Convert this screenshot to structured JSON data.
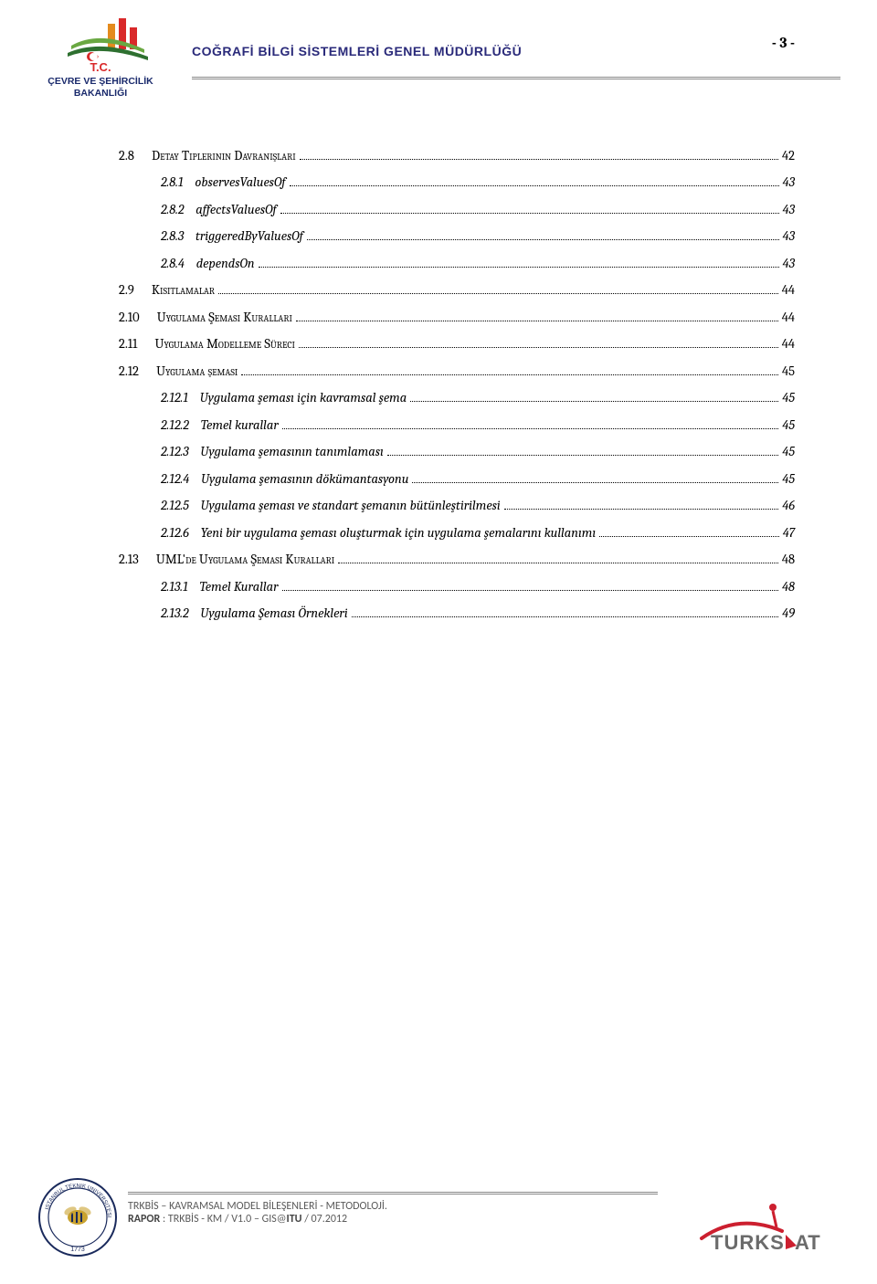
{
  "header": {
    "title": "COĞRAFİ BİLGİ SİSTEMLERİ GENEL MÜDÜRLÜĞÜ",
    "page_number": "- 3 -"
  },
  "toc": [
    {
      "level": 1,
      "num": "2.8",
      "title": "Detay Tiplerinin Davranışları",
      "page": "42"
    },
    {
      "level": 2,
      "num": "2.8.1",
      "title": "observesValuesOf",
      "page": "43"
    },
    {
      "level": 2,
      "num": "2.8.2",
      "title": "affectsValuesOf",
      "page": "43"
    },
    {
      "level": 2,
      "num": "2.8.3",
      "title": "triggeredByValuesOf",
      "page": "43"
    },
    {
      "level": 2,
      "num": "2.8.4",
      "title": "dependsOn",
      "page": "43"
    },
    {
      "level": 1,
      "num": "2.9",
      "title": "Kısıtlamalar",
      "page": "44"
    },
    {
      "level": 1,
      "num": "2.10",
      "title": "Uygulama Şeması Kuralları",
      "page": "44"
    },
    {
      "level": 1,
      "num": "2.11",
      "title": "Uygulama Modelleme Süreci",
      "page": "44"
    },
    {
      "level": 1,
      "num": "2.12",
      "title": "Uygulama şeması",
      "page": "45"
    },
    {
      "level": 2,
      "num": "2.12.1",
      "title": "Uygulama şeması için kavramsal şema",
      "page": "45"
    },
    {
      "level": 2,
      "num": "2.12.2",
      "title": "Temel kurallar",
      "page": "45"
    },
    {
      "level": 2,
      "num": "2.12.3",
      "title": "Uygulama şemasının tanımlaması",
      "page": "45"
    },
    {
      "level": 2,
      "num": "2.12.4",
      "title": "Uygulama şemasının dökümantasyonu",
      "page": "45"
    },
    {
      "level": 2,
      "num": "2.12.5",
      "title": "Uygulama şeması ve standart şemanın bütünleştirilmesi",
      "page": "46"
    },
    {
      "level": 2,
      "num": "2.12.6",
      "title": "Yeni bir uygulama şeması oluşturmak için uygulama şemalarını kullanımı",
      "page": "47"
    },
    {
      "level": 1,
      "num": "2.13",
      "title": "UML'de Uygulama Şeması Kuralları",
      "page": "48"
    },
    {
      "level": 2,
      "num": "2.13.1",
      "title": "Temel Kurallar",
      "page": "48"
    },
    {
      "level": 2,
      "num": "2.13.2",
      "title": "Uygulama Şeması Örnekleri",
      "page": "49"
    }
  ],
  "footer": {
    "line1": "TRKBİS – KAVRAMSAL MODEL BİLEŞENLERİ - METODOLOJİ.",
    "line2_label": "RAPOR",
    "line2_rest": " : TRKBİS - KM / V1.0 – GIS@",
    "line2_bold2": "ITU",
    "line2_rest2": " / 07.2012"
  },
  "colors": {
    "header_title": "#2a2a7a",
    "rule": "#888888",
    "text": "#000000",
    "footer_text": "#5a5a5a",
    "logo_red": "#d9292a",
    "logo_orange": "#e48b1e",
    "logo_green": "#6aa842",
    "logo_darkgreen": "#2e7030",
    "logo_navy": "#1a2a6c",
    "turksat_red": "#cc1f2f",
    "turksat_grey": "#6b6b6b",
    "itu_gold": "#c9a22f",
    "itu_navy": "#1a2a5c"
  }
}
